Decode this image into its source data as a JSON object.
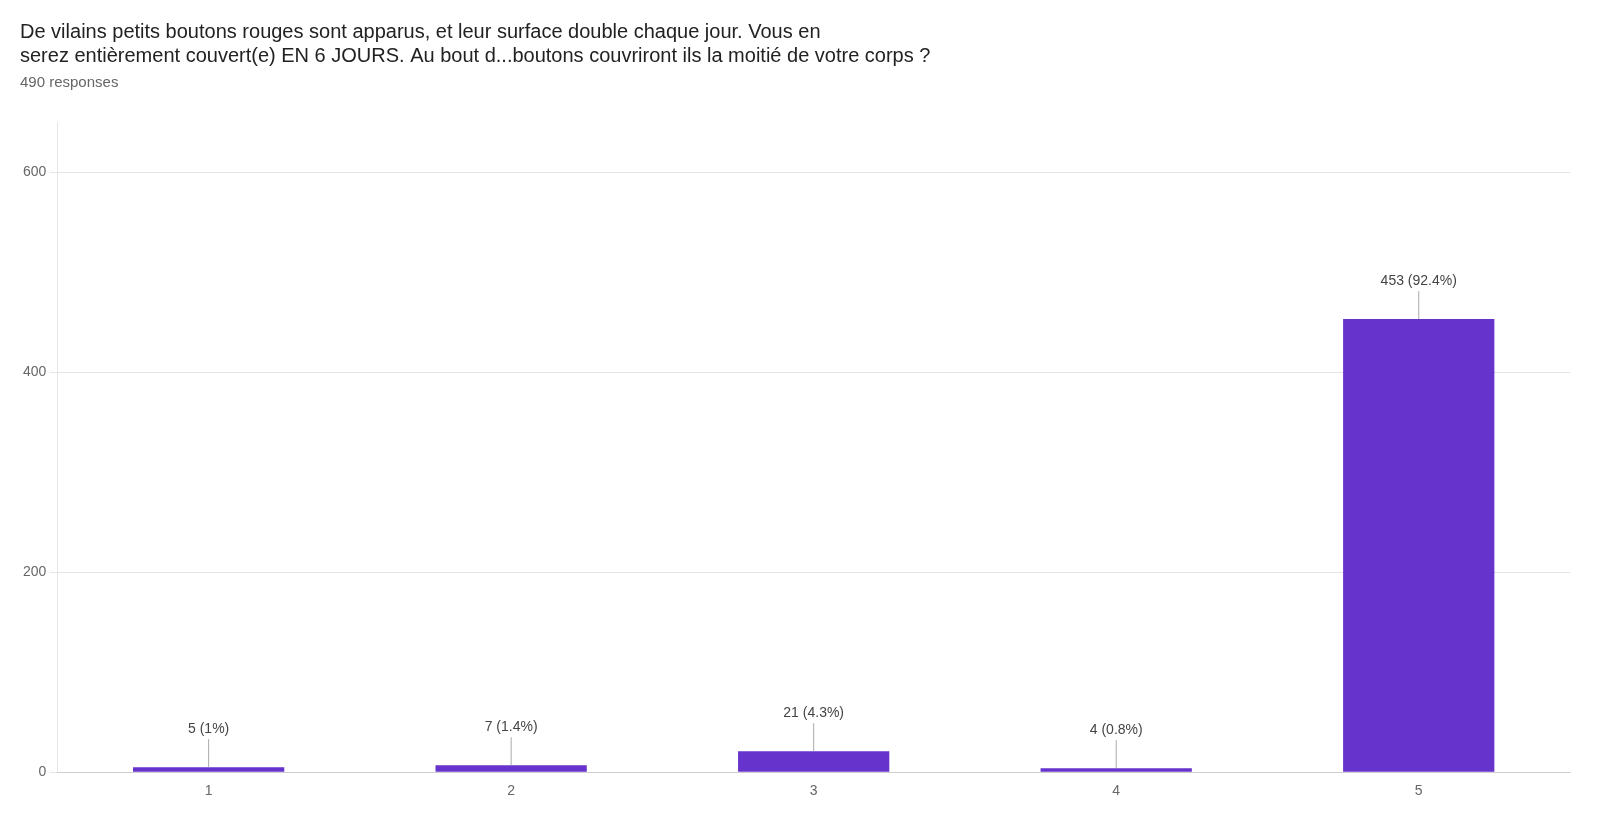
{
  "chart_data": {
    "type": "bar",
    "title": [
      "De vilains petits boutons rouges sont apparus, et leur surface double chaque jour. Vous en",
      "serez entièrement couvert(e) EN 6 JOURS. Au bout d...boutons couvriront ils la moitié de votre corps ?"
    ],
    "subtitle": "490 responses",
    "categories": [
      "1",
      "2",
      "3",
      "4",
      "5"
    ],
    "values": [
      5,
      7,
      21,
      4,
      453
    ],
    "value_labels": [
      "5 (1%)",
      "7 (1.4%)",
      "21 (4.3%)",
      "4 (0.8%)",
      "453 (92.4%)"
    ],
    "data_labels": true,
    "color": "#6633CC",
    "ylim": [
      0,
      650
    ],
    "yticks": [
      0,
      200,
      400,
      600
    ],
    "grid": true
  }
}
